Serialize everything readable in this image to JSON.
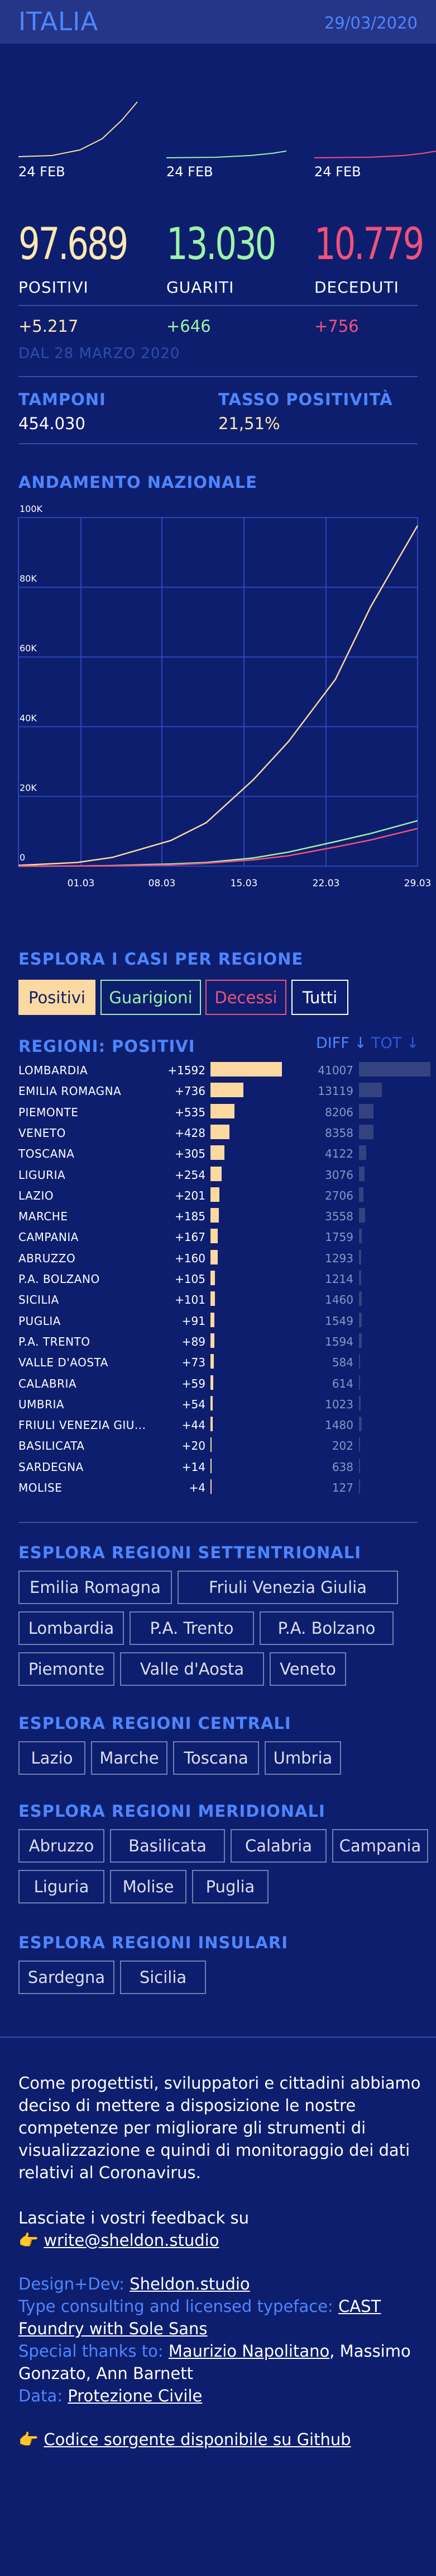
{
  "header": {
    "title": "ITALIA",
    "date": "29/03/2020"
  },
  "spark_labels": [
    "24 FEB",
    "24 FEB",
    "24 FEB"
  ],
  "stats": [
    {
      "value": "97.689",
      "label": "POSITIVI",
      "delta": "+5.217",
      "color": "#fce8b0"
    },
    {
      "value": "13.030",
      "label": "GUARITI",
      "delta": "+646",
      "color": "#9bf4a6"
    },
    {
      "value": "10.779",
      "label": "DECEDUTI",
      "delta": "+756",
      "color": "#f2517a"
    }
  ],
  "since": "DAL 28 MARZO 2020",
  "tests": {
    "tamponi_label": "TAMPONI",
    "tamponi_value": "454.030",
    "tasso_label": "TASSO POSITIVITÀ",
    "tasso_value": "21,51%"
  },
  "chart_title": "ANDAMENTO NAZIONALE",
  "chart_data": {
    "type": "line",
    "title": "ANDAMENTO NAZIONALE",
    "x": [
      "24/02",
      "29/02",
      "03/03",
      "08/03",
      "11/03",
      "15/03",
      "18/03",
      "22/03",
      "25/03",
      "29/03"
    ],
    "x_ticks": [
      "01.03",
      "08.03",
      "15.03",
      "22.03",
      "29.03"
    ],
    "y_ticks": [
      "100K",
      "80K",
      "60K",
      "40K",
      "20K",
      "0"
    ],
    "ylim": [
      0,
      100000
    ],
    "series": [
      {
        "key": "positivi",
        "values": [
          229,
          1049,
          2502,
          7375,
          12462,
          24747,
          35713,
          53578,
          74386,
          97689
        ],
        "color": "#fcd9a0"
      },
      {
        "key": "guariti",
        "values": [
          1,
          50,
          160,
          622,
          1045,
          2335,
          4025,
          7024,
          9362,
          13030
        ],
        "color": "#9bf4a6"
      },
      {
        "key": "deceduti",
        "values": [
          7,
          29,
          79,
          366,
          827,
          1809,
          2978,
          5476,
          7503,
          10779
        ],
        "color": "#f2517a"
      }
    ],
    "grid": true
  },
  "explore_title": "ESPLORA I CASI PER REGIONE",
  "tabs": [
    "Positivi",
    "Guarigioni",
    "Decessi",
    "Tutti"
  ],
  "regions_title": "REGIONI: POSITIVI",
  "sort": {
    "diff": "DIFF ↓",
    "tot": "TOT ↓"
  },
  "regions": [
    {
      "name": "LOMBARDIA",
      "diff": "+1592",
      "diff_n": 1592,
      "tot": "41007",
      "tot_n": 41007
    },
    {
      "name": "EMILIA ROMAGNA",
      "diff": "+736",
      "diff_n": 736,
      "tot": "13119",
      "tot_n": 13119
    },
    {
      "name": "PIEMONTE",
      "diff": "+535",
      "diff_n": 535,
      "tot": "8206",
      "tot_n": 8206
    },
    {
      "name": "VENETO",
      "diff": "+428",
      "diff_n": 428,
      "tot": "8358",
      "tot_n": 8358
    },
    {
      "name": "TOSCANA",
      "diff": "+305",
      "diff_n": 305,
      "tot": "4122",
      "tot_n": 4122
    },
    {
      "name": "LIGURIA",
      "diff": "+254",
      "diff_n": 254,
      "tot": "3076",
      "tot_n": 3076
    },
    {
      "name": "LAZIO",
      "diff": "+201",
      "diff_n": 201,
      "tot": "2706",
      "tot_n": 2706
    },
    {
      "name": "MARCHE",
      "diff": "+185",
      "diff_n": 185,
      "tot": "3558",
      "tot_n": 3558
    },
    {
      "name": "CAMPANIA",
      "diff": "+167",
      "diff_n": 167,
      "tot": "1759",
      "tot_n": 1759
    },
    {
      "name": "ABRUZZO",
      "diff": "+160",
      "diff_n": 160,
      "tot": "1293",
      "tot_n": 1293
    },
    {
      "name": "P.A. BOLZANO",
      "diff": "+105",
      "diff_n": 105,
      "tot": "1214",
      "tot_n": 1214
    },
    {
      "name": "SICILIA",
      "diff": "+101",
      "diff_n": 101,
      "tot": "1460",
      "tot_n": 1460
    },
    {
      "name": "PUGLIA",
      "diff": "+91",
      "diff_n": 91,
      "tot": "1549",
      "tot_n": 1549
    },
    {
      "name": "P.A. TRENTO",
      "diff": "+89",
      "diff_n": 89,
      "tot": "1594",
      "tot_n": 1594
    },
    {
      "name": "VALLE D'AOSTA",
      "diff": "+73",
      "diff_n": 73,
      "tot": "584",
      "tot_n": 584
    },
    {
      "name": "CALABRIA",
      "diff": "+59",
      "diff_n": 59,
      "tot": "614",
      "tot_n": 614
    },
    {
      "name": "UMBRIA",
      "diff": "+54",
      "diff_n": 54,
      "tot": "1023",
      "tot_n": 1023
    },
    {
      "name": "FRIULI VENEZIA GIU...",
      "diff": "+44",
      "diff_n": 44,
      "tot": "1480",
      "tot_n": 1480
    },
    {
      "name": "BASILICATA",
      "diff": "+20",
      "diff_n": 20,
      "tot": "202",
      "tot_n": 202
    },
    {
      "name": "SARDEGNA",
      "diff": "+14",
      "diff_n": 14,
      "tot": "638",
      "tot_n": 638
    },
    {
      "name": "MOLISE",
      "diff": "+4",
      "diff_n": 4,
      "tot": "127",
      "tot_n": 127
    }
  ],
  "groups": [
    {
      "title": "ESPLORA REGIONI SETTENTRIONALI",
      "rows": [
        [
          "Emilia Romagna",
          "Friuli Venezia Giulia"
        ],
        [
          "Lombardia",
          "P.A. Trento",
          "P.A. Bolzano"
        ],
        [
          "Piemonte",
          "Valle d'Aosta",
          "Veneto"
        ]
      ]
    },
    {
      "title": "ESPLORA REGIONI CENTRALI",
      "rows": [
        [
          "Lazio",
          "Marche",
          "Toscana",
          "Umbria"
        ]
      ]
    },
    {
      "title": "ESPLORA REGIONI MERIDIONALI",
      "rows": [
        [
          "Abruzzo",
          "Basilicata",
          "Calabria",
          "Campania"
        ],
        [
          "Liguria",
          "Molise",
          "Puglia"
        ]
      ]
    },
    {
      "title": "ESPLORA REGIONI INSULARI",
      "rows": [
        [
          "Sardegna",
          "Sicilia"
        ]
      ]
    }
  ],
  "footer": {
    "intro_lines": [
      "Come progettisti, sviluppatori e cittadini abbiamo",
      "deciso di mettere a disposizione le nostre",
      "competenze per migliorare gli strumenti di",
      "visualizzazione e quindi di monitoraggio dei dati",
      "relativi al Coronavirus."
    ],
    "feedback": "Lasciate i vostri feedback su",
    "email": "write@sheldon.studio",
    "design_label": "Design+Dev:",
    "design_link": "Sheldon.studio",
    "type_label": "Type consulting and licensed typeface:",
    "type_link1": "CAST",
    "type_link2": "Foundry with Sole Sans",
    "thanks_label": "Special thanks to:",
    "thanks_link": "Maurizio Napolitano",
    "thanks_rest1": ", Massimo",
    "thanks_rest2": "Gonzato, Ann Barnett",
    "data_label": "Data:",
    "data_link": "Protezione Civile",
    "github": "Codice sorgente disponibile su Github"
  }
}
